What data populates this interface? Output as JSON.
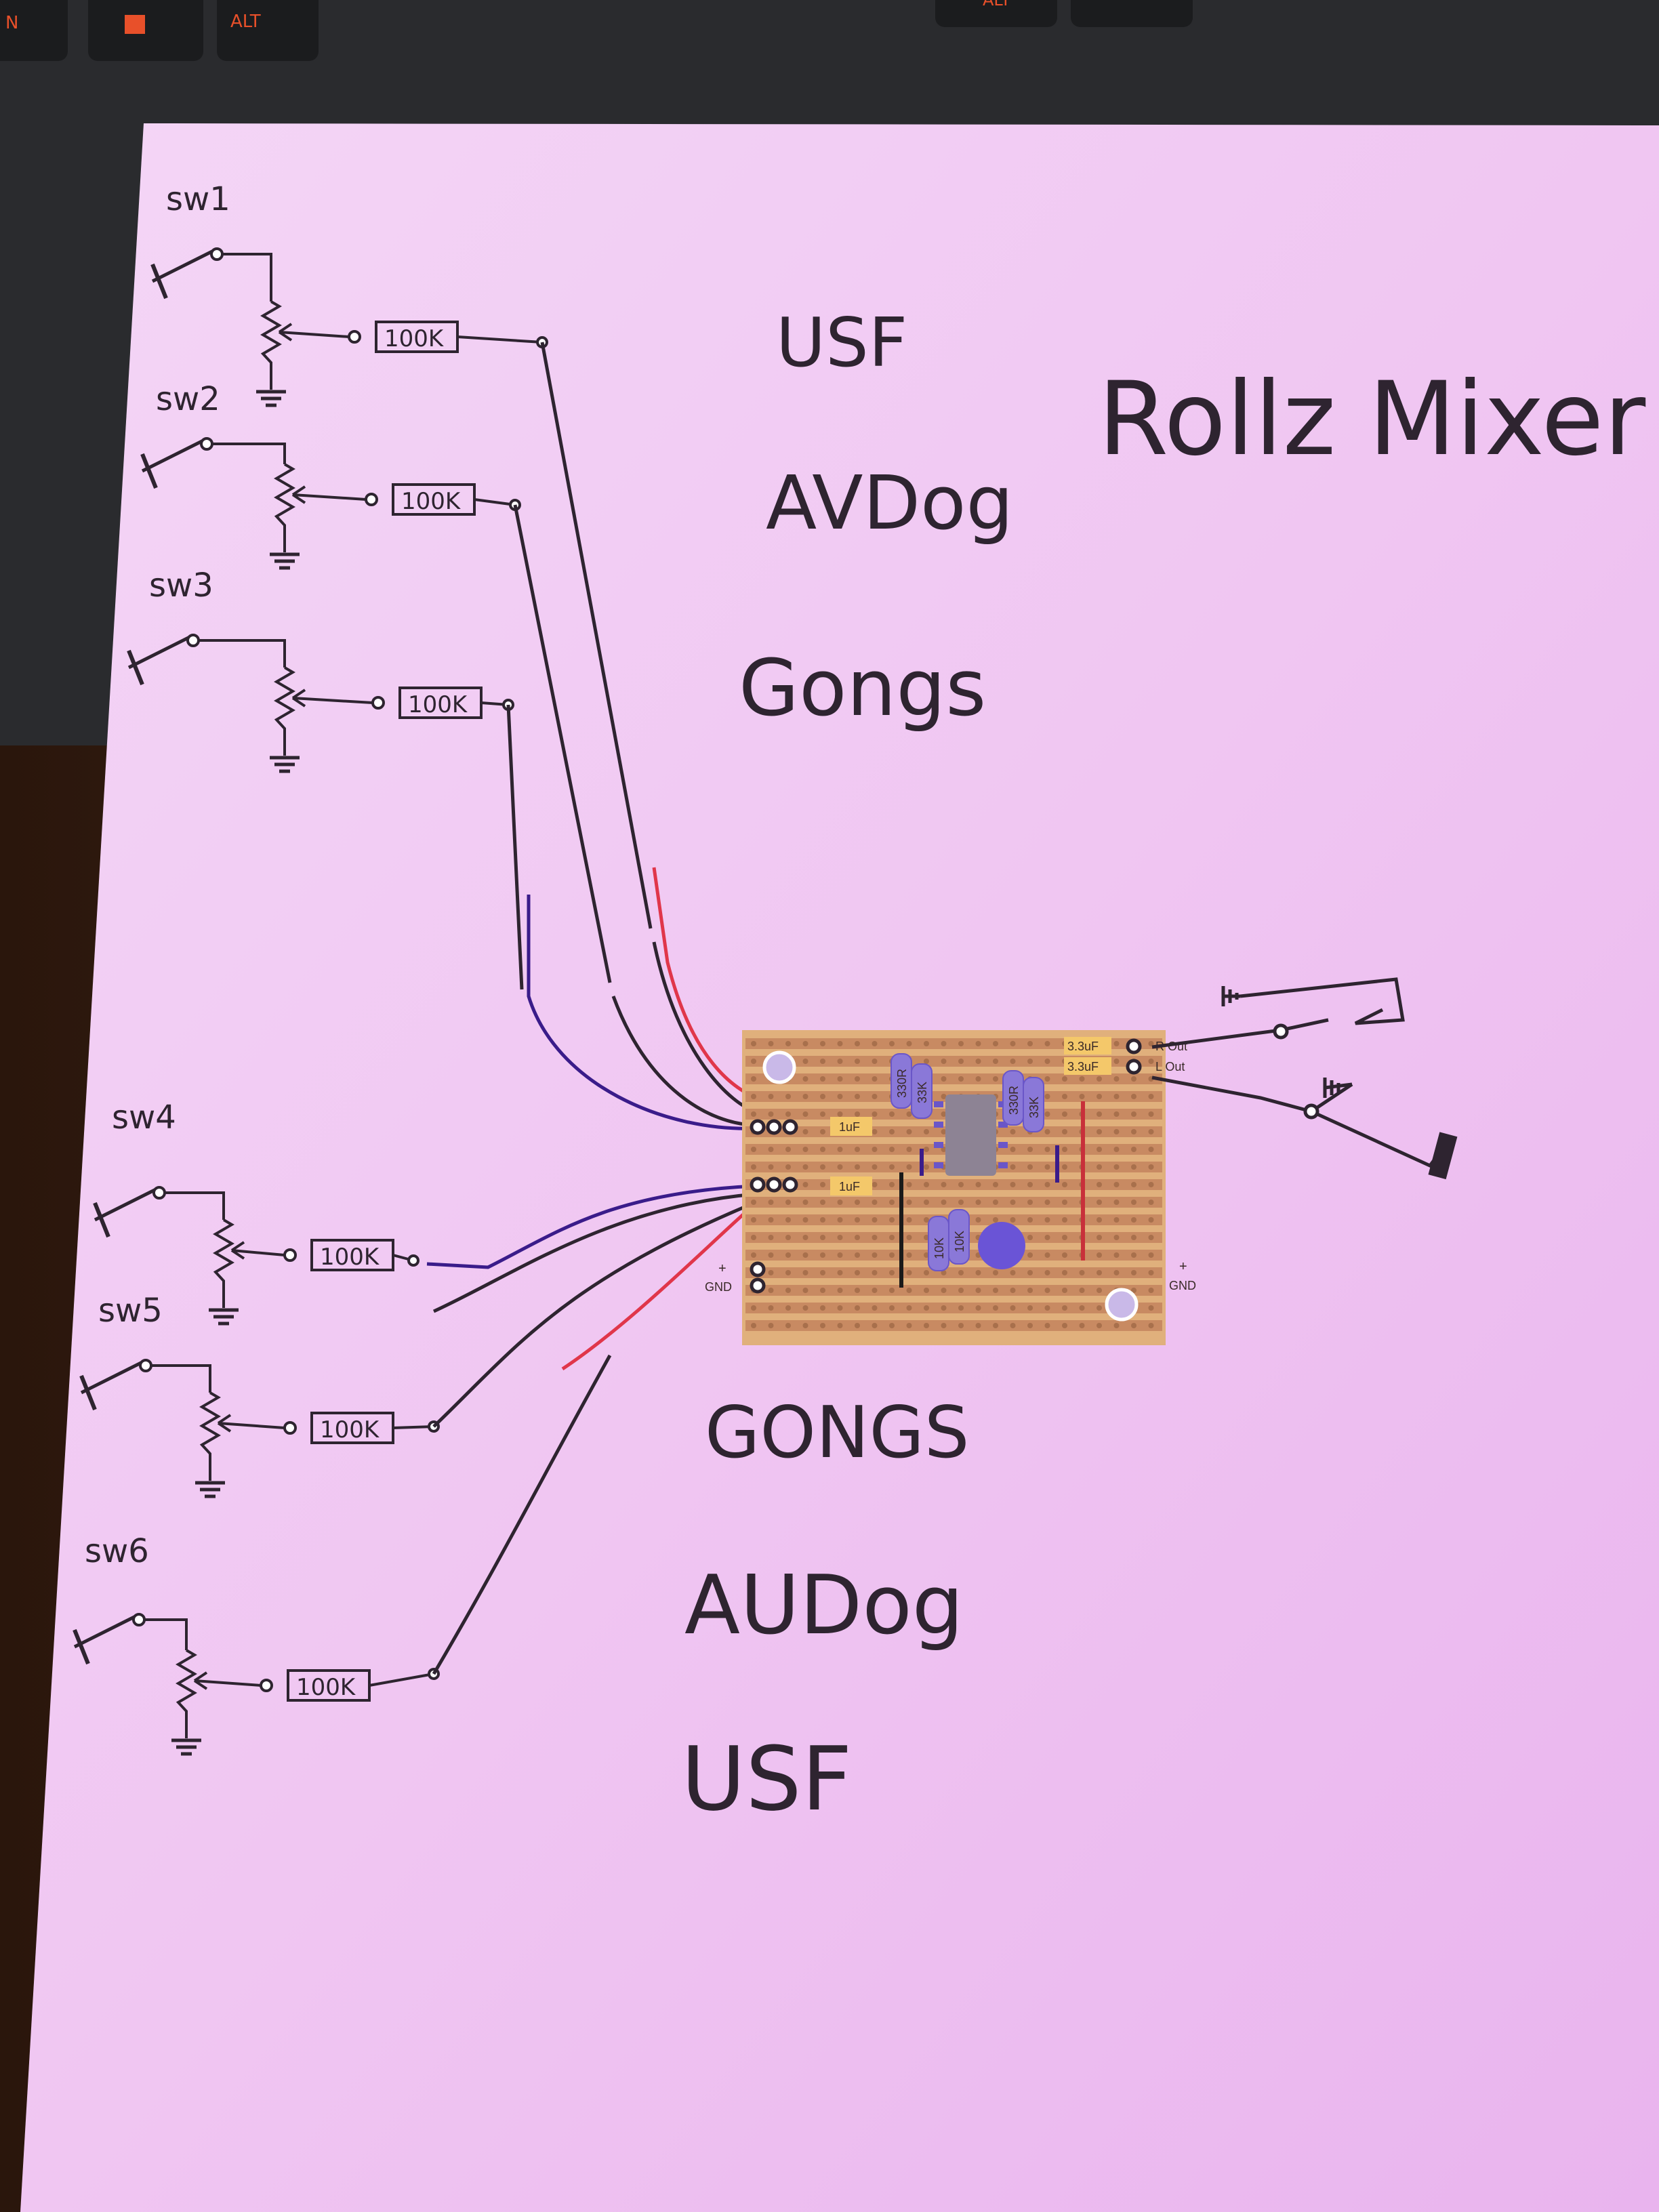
{
  "keyboard": {
    "keys": [
      "N",
      "ALT",
      "ALT"
    ],
    "accent_color": "#e8502a"
  },
  "diagram": {
    "title": "Rollz Mixer",
    "switch_labels": [
      "sw1",
      "sw2",
      "sw3",
      "sw4",
      "sw5",
      "sw6"
    ],
    "resistor_label": "100K",
    "channel_group_top": [
      "USF",
      "AVDog",
      "Gongs"
    ],
    "channel_group_bottom": [
      "GONGS",
      "AUDog",
      "USF"
    ],
    "paper_color": "#f2cdf4",
    "ink_color": "#2e2430"
  },
  "stripboard": {
    "input_caps": [
      "1uF",
      "1uF"
    ],
    "output_caps": [
      "3.3uF",
      "3.3uF"
    ],
    "outputs": [
      "R Out",
      "L Out"
    ],
    "gnd_label": "GND",
    "plus_label": "+",
    "resistors": [
      "330R",
      "33K",
      "330R",
      "33K",
      "10K",
      "10K"
    ],
    "board_color": "#d9a06c",
    "component_color": "#8a78d8"
  }
}
